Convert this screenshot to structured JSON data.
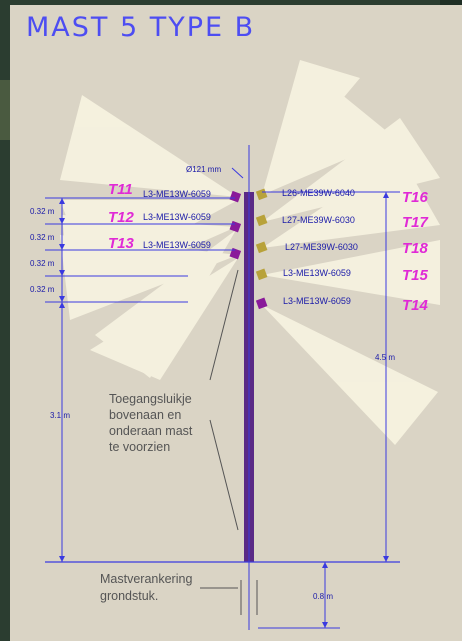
{
  "title": "MAST 5 TYPE B",
  "diameter_label": "Ø121 mm",
  "left_fixtures": [
    {
      "tag": "T11",
      "code": "L3-ME13W-6059"
    },
    {
      "tag": "T12",
      "code": "L3-ME13W-6059"
    },
    {
      "tag": "T13",
      "code": "L3-ME13W-6059"
    }
  ],
  "right_fixtures": [
    {
      "tag": "T16",
      "code": "L26-ME39W-6040"
    },
    {
      "tag": "T17",
      "code": "L27-ME39W-6030"
    },
    {
      "tag": "T18",
      "code": "L27-ME39W-6030"
    },
    {
      "tag": "T15",
      "code": "L3-ME13W-6059"
    },
    {
      "tag": "T14",
      "code": "L3-ME13W-6059"
    }
  ],
  "spacing_labels": [
    "0.32 m",
    "0.32 m",
    "0.32 m",
    "0.32 m"
  ],
  "height_left_label": "3.1 m",
  "height_right_label": "4.5 m",
  "foundation_label": "0.8 m",
  "note_access": [
    "Toegangsluikje",
    "bovenaan en",
    "onderaan mast",
    "te voorzien"
  ],
  "note_anchor": [
    "Mastverankering",
    "grondstuk."
  ],
  "colors": {
    "title": "#4d4df2",
    "mast": "#5a2a86",
    "dimension_line": "#3a3ae0",
    "fixture_tag": "#e02ad6",
    "fixture_code": "#1a1aa8",
    "light_beam": "#fffce8"
  }
}
